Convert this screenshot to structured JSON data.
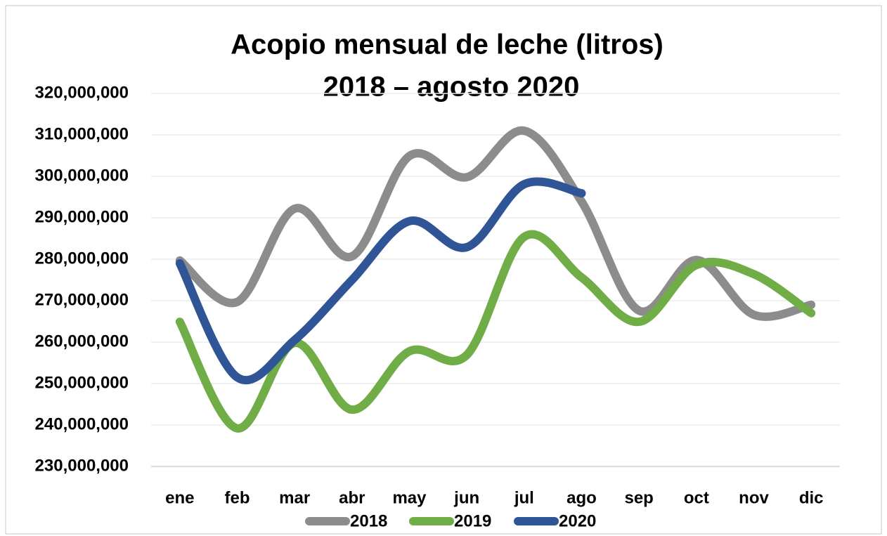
{
  "chart_data": {
    "type": "line",
    "title": "Acopio mensual de leche (litros)",
    "subtitle": "2018 – agosto 2020",
    "categories": [
      "ene",
      "feb",
      "mar",
      "abr",
      "may",
      "jun",
      "jul",
      "ago",
      "sep",
      "oct",
      "nov",
      "dic"
    ],
    "series": [
      {
        "name": "2018",
        "color": "#8c8c8c",
        "values": [
          279700000,
          269700000,
          292200000,
          280700000,
          304900000,
          299800000,
          311000000,
          293900000,
          267600000,
          279800000,
          266600000,
          269000000
        ]
      },
      {
        "name": "2019",
        "color": "#70ad47",
        "values": [
          264900000,
          239200000,
          259800000,
          243700000,
          257800000,
          256900000,
          285400000,
          275600000,
          264900000,
          278600000,
          276400000,
          267000000
        ]
      },
      {
        "name": "2020",
        "color": "#2f5597",
        "values": [
          279000000,
          251500000,
          260500000,
          275000000,
          289200000,
          282900000,
          298100000,
          295900000,
          null,
          null,
          null,
          null
        ]
      }
    ],
    "ylim": [
      230000000,
      320000000
    ],
    "yticks": [
      {
        "value": 230000000,
        "label": "230,000,000"
      },
      {
        "value": 240000000,
        "label": "240,000,000"
      },
      {
        "value": 250000000,
        "label": "250,000,000"
      },
      {
        "value": 260000000,
        "label": "260,000,000"
      },
      {
        "value": 270000000,
        "label": "270,000,000"
      },
      {
        "value": 280000000,
        "label": "280,000,000"
      },
      {
        "value": 290000000,
        "label": "290,000,000"
      },
      {
        "value": 300000000,
        "label": "300,000,000"
      },
      {
        "value": 310000000,
        "label": "310,000,000"
      },
      {
        "value": 320000000,
        "label": "320,000,000"
      }
    ],
    "grid": true,
    "smooth": true,
    "legend": "bottom"
  }
}
